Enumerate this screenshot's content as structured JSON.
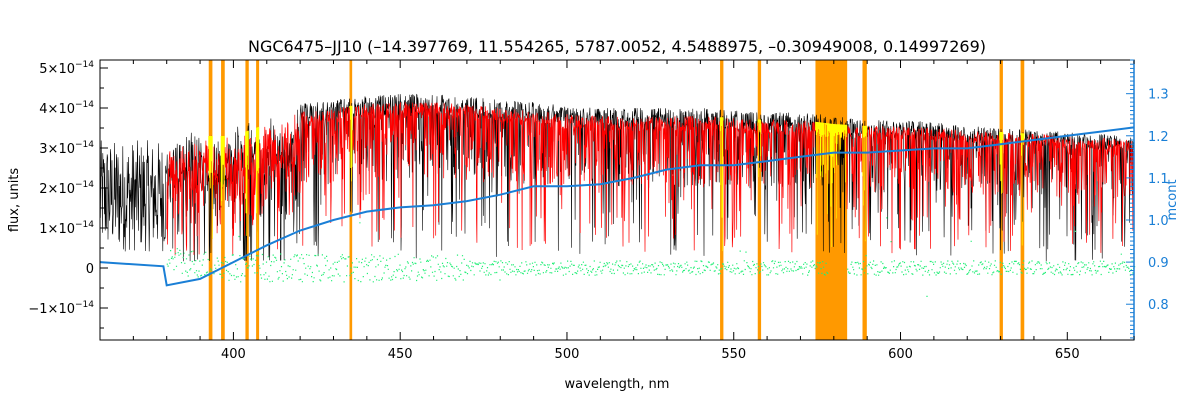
{
  "chart_data": {
    "type": "line",
    "title": "NGC6475–JJ10   (–14.397769, 11.554265, 5787.0052, 4.5488975, –0.30949008, 0.14997269)",
    "xlabel": "wavelength, nm",
    "ylabel": "flux, units",
    "y2label": "mcont",
    "xlim": [
      360,
      670
    ],
    "ylim": [
      -1.8e-14,
      5.2e-14
    ],
    "y2lim": [
      0.715,
      1.38
    ],
    "x_ticks": [
      400,
      450,
      500,
      550,
      600,
      650
    ],
    "x_tick_labels": [
      "400",
      "450",
      "500",
      "550",
      "600",
      "650"
    ],
    "y_ticks": [
      -1e-14,
      0,
      1e-14,
      2e-14,
      3e-14,
      4e-14,
      5e-14
    ],
    "y_tick_mantissa": [
      "−1",
      "0",
      "1",
      "2",
      "3",
      "4",
      "5"
    ],
    "y_tick_base": "×10",
    "y_tick_exp": "−14",
    "y2_ticks": [
      0.8,
      0.9,
      1.0,
      1.1,
      1.2,
      1.3
    ],
    "y2_tick_labels": [
      "0.8",
      "0.9",
      "1.0",
      "1.1",
      "1.2",
      "1.3"
    ],
    "grid": false,
    "legend": "none",
    "colors": {
      "observed": "#000000",
      "model": "#ff0000",
      "residual": "#22ee77",
      "continuum": "#1a7fd6",
      "masked_bands": "#ff9900",
      "masked_model": "#ffff00"
    },
    "masked_bands_nm": [
      [
        392.6,
        393.7
      ],
      [
        396.3,
        397.4
      ],
      [
        403.6,
        404.6
      ],
      [
        406.8,
        407.7
      ],
      [
        434.8,
        435.6
      ],
      [
        545.9,
        546.9
      ],
      [
        557.2,
        558.2
      ],
      [
        574.5,
        584.0
      ],
      [
        588.6,
        589.9
      ],
      [
        629.7,
        630.7
      ],
      [
        636.0,
        637.1
      ]
    ],
    "series": [
      {
        "key": "observed",
        "x": [
          360,
          365,
          370,
          375,
          379,
          382,
          390,
          400,
          410,
          420,
          430,
          440,
          450,
          460,
          470,
          480,
          490,
          500,
          510,
          520,
          530,
          540,
          550,
          560,
          570,
          580,
          590,
          600,
          610,
          620,
          630,
          640,
          650,
          660,
          670
        ],
        "y": [
          3e-14,
          2.9e-14,
          2.8e-14,
          2.9e-14,
          2.9e-14,
          3.3e-14,
          3.5e-14,
          3.5e-14,
          3.8e-14,
          4.1e-14,
          4.2e-14,
          4.3e-14,
          4.35e-14,
          4.35e-14,
          4.3e-14,
          4.2e-14,
          4.15e-14,
          4.05e-14,
          4e-14,
          4e-14,
          4e-14,
          4e-14,
          3.95e-14,
          3.9e-14,
          3.9e-14,
          3.8e-14,
          3.7e-14,
          3.7e-14,
          3.65e-14,
          3.55e-14,
          3.5e-14,
          3.45e-14,
          3.4e-14,
          3.35e-14,
          3.3e-14
        ]
      },
      {
        "key": "model",
        "x": [
          380,
          390,
          400,
          410,
          420,
          430,
          440,
          450,
          460,
          470,
          480,
          490,
          500,
          510,
          520,
          530,
          540,
          550,
          560,
          570,
          580,
          590,
          600,
          610,
          620,
          630,
          640,
          650,
          660,
          670
        ],
        "y": [
          3.1e-14,
          3.3e-14,
          3.3e-14,
          3.6e-14,
          3.9e-14,
          4e-14,
          4.1e-14,
          4.15e-14,
          4.15e-14,
          4.1e-14,
          4e-14,
          3.95e-14,
          3.85e-14,
          3.8e-14,
          3.8e-14,
          3.8e-14,
          3.8e-14,
          3.75e-14,
          3.7e-14,
          3.7e-14,
          3.6e-14,
          3.55e-14,
          3.55e-14,
          3.5e-14,
          3.45e-14,
          3.4e-14,
          3.35e-14,
          3.3e-14,
          3.25e-14,
          3.2e-14
        ]
      },
      {
        "key": "residual",
        "x": [
          380,
          400,
          420,
          440,
          460,
          480,
          500,
          520,
          540,
          560,
          580,
          600,
          620,
          640,
          660,
          670
        ],
        "y": [
          2e-15,
          0,
          0,
          0,
          0,
          0,
          0,
          0,
          0,
          0,
          0,
          0,
          0,
          0,
          0,
          0
        ]
      },
      {
        "key": "continuum",
        "x": [
          360,
          379,
          380,
          390,
          400,
          410,
          420,
          430,
          440,
          450,
          460,
          470,
          480,
          490,
          500,
          510,
          520,
          530,
          540,
          550,
          560,
          570,
          580,
          590,
          600,
          610,
          620,
          630,
          640,
          650,
          660,
          670
        ],
        "y2": [
          0.9,
          0.89,
          0.845,
          0.86,
          0.9,
          0.94,
          0.975,
          1.0,
          1.02,
          1.03,
          1.035,
          1.045,
          1.06,
          1.08,
          1.08,
          1.085,
          1.1,
          1.12,
          1.13,
          1.13,
          1.14,
          1.15,
          1.16,
          1.16,
          1.165,
          1.17,
          1.17,
          1.18,
          1.19,
          1.2,
          1.21,
          1.22
        ]
      }
    ]
  }
}
